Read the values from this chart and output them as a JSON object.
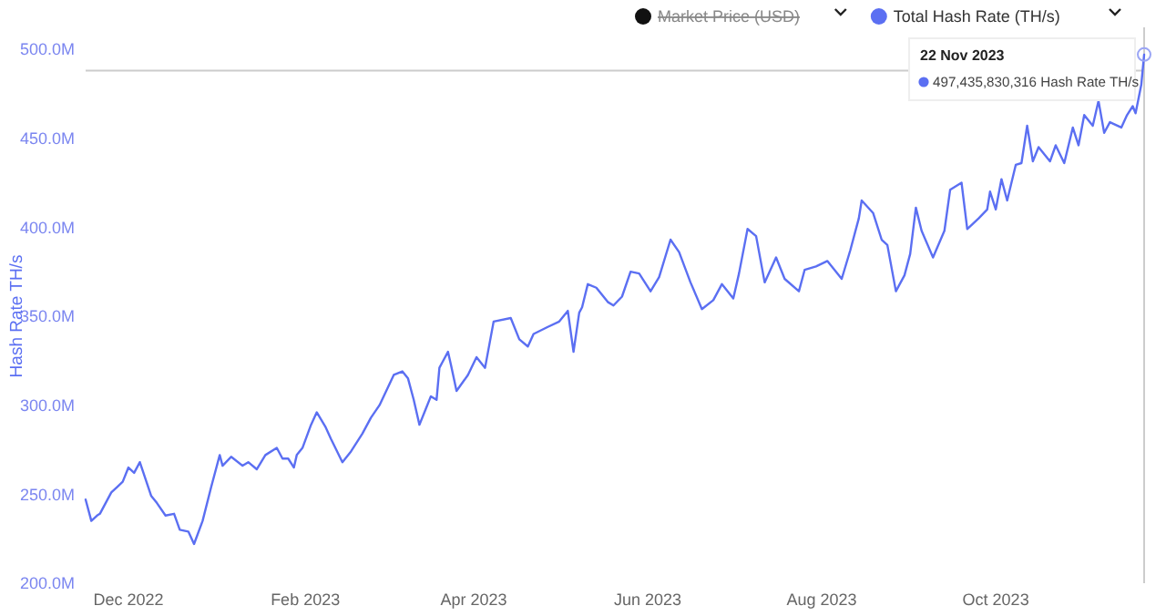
{
  "chart_data": {
    "type": "line",
    "ylabel": "Hash Rate TH/s",
    "legend": "top right",
    "x": [
      "2022-11-16",
      "2022-11-18",
      "2022-11-20",
      "2022-11-21",
      "2022-11-23",
      "2022-11-25",
      "2022-11-27",
      "2022-11-29",
      "2022-12-01",
      "2022-12-03",
      "2022-12-05",
      "2022-12-09",
      "2022-12-11",
      "2022-12-14",
      "2022-12-17",
      "2022-12-19",
      "2022-12-22",
      "2022-12-24",
      "2022-12-27",
      "2022-12-30",
      "2023-01-02",
      "2023-01-03",
      "2023-01-06",
      "2023-01-10",
      "2023-01-12",
      "2023-01-15",
      "2023-01-18",
      "2023-01-22",
      "2023-01-24",
      "2023-01-26",
      "2023-01-28",
      "2023-01-29",
      "2023-01-31",
      "2023-02-03",
      "2023-02-05",
      "2023-02-08",
      "2023-02-10",
      "2023-02-14",
      "2023-02-17",
      "2023-02-21",
      "2023-02-24",
      "2023-02-27",
      "2023-03-04",
      "2023-03-07",
      "2023-03-09",
      "2023-03-11",
      "2023-03-13",
      "2023-03-15",
      "2023-03-17",
      "2023-03-19",
      "2023-03-20",
      "2023-03-21",
      "2023-03-23",
      "2023-03-24",
      "2023-03-26",
      "2023-03-30",
      "2023-04-02",
      "2023-04-05",
      "2023-04-08",
      "2023-04-14",
      "2023-04-17",
      "2023-04-20",
      "2023-04-22",
      "2023-04-27",
      "2023-05-01",
      "2023-05-04",
      "2023-05-06",
      "2023-05-08",
      "2023-05-09",
      "2023-05-11",
      "2023-05-14",
      "2023-05-18",
      "2023-05-20",
      "2023-05-23",
      "2023-05-26",
      "2023-05-29",
      "2023-06-02",
      "2023-06-05",
      "2023-06-09",
      "2023-06-12",
      "2023-06-16",
      "2023-06-20",
      "2023-06-24",
      "2023-06-27",
      "2023-07-01",
      "2023-07-03",
      "2023-07-06",
      "2023-07-09",
      "2023-07-12",
      "2023-07-16",
      "2023-07-19",
      "2023-07-24",
      "2023-07-26",
      "2023-07-30",
      "2023-08-03",
      "2023-08-08",
      "2023-08-11",
      "2023-08-14",
      "2023-08-15",
      "2023-08-19",
      "2023-08-22",
      "2023-08-24",
      "2023-08-27",
      "2023-08-30",
      "2023-09-01",
      "2023-09-03",
      "2023-09-05",
      "2023-09-09",
      "2023-09-13",
      "2023-09-15",
      "2023-09-19",
      "2023-09-21",
      "2023-09-25",
      "2023-09-28",
      "2023-09-29",
      "2023-10-01",
      "2023-10-03",
      "2023-10-05",
      "2023-10-08",
      "2023-10-10",
      "2023-10-12",
      "2023-10-14",
      "2023-10-16",
      "2023-10-20",
      "2023-10-22",
      "2023-10-25",
      "2023-10-28",
      "2023-10-30",
      "2023-11-01",
      "2023-11-04",
      "2023-11-06",
      "2023-11-08",
      "2023-11-10",
      "2023-11-14",
      "2023-11-16",
      "2023-11-18",
      "2023-11-19",
      "2023-11-21",
      "2023-11-22"
    ],
    "series": [
      {
        "name": "Total Hash Rate (TH/s)",
        "color": "#5b6ff2",
        "values": [
          247,
          235,
          238,
          239,
          245,
          251,
          254,
          257,
          265,
          262,
          268,
          249,
          245,
          238,
          239,
          230,
          229,
          222,
          235,
          254,
          272,
          266,
          271,
          266,
          268,
          264,
          272,
          276,
          270,
          270,
          265,
          272,
          276,
          289,
          296,
          288,
          281,
          268,
          274,
          284,
          293,
          300,
          317,
          319,
          315,
          303,
          289,
          297,
          305,
          303,
          321,
          324,
          330,
          323,
          308,
          317,
          327,
          321,
          347,
          349,
          337,
          333,
          340,
          344,
          347,
          353,
          330,
          352,
          355,
          368,
          366,
          358,
          356,
          361,
          375,
          374,
          364,
          372,
          393,
          386,
          369,
          354,
          359,
          368,
          360,
          374,
          399,
          395,
          369,
          383,
          371,
          364,
          376,
          378,
          381,
          371,
          387,
          405,
          415,
          408,
          393,
          390,
          364,
          373,
          385,
          411,
          398,
          383,
          398,
          421,
          425,
          399,
          405,
          410,
          420,
          410,
          427,
          415,
          435,
          436,
          457,
          437,
          445,
          437,
          446,
          436,
          456,
          446,
          463,
          457,
          471,
          453,
          459,
          456,
          463,
          468,
          464,
          480,
          497
        ]
      },
      {
        "name": "Market Price (USD)",
        "color": "#111111",
        "values": [
          null,
          null,
          null,
          null,
          null,
          null,
          null,
          null,
          null,
          null,
          null,
          null,
          null,
          null,
          null,
          null,
          null,
          null,
          null,
          null,
          null,
          null,
          null,
          null,
          null,
          null,
          null,
          null,
          null,
          null,
          null,
          null,
          null,
          null,
          null,
          null,
          null,
          null,
          null,
          null,
          null,
          null,
          null,
          null,
          null,
          null,
          null,
          null,
          null,
          null,
          null,
          null,
          null,
          null,
          null,
          null,
          null,
          null,
          null,
          null,
          null,
          null,
          null,
          null,
          null,
          null,
          null,
          null,
          null,
          null,
          null,
          null,
          null,
          null,
          null,
          null,
          null,
          null,
          null,
          null,
          null,
          null,
          null,
          null,
          null,
          null,
          null,
          null,
          null,
          null,
          null,
          null,
          null,
          null,
          null,
          null,
          null,
          null,
          null,
          null,
          null,
          null,
          null,
          null,
          null,
          null,
          null,
          null,
          null,
          null,
          null,
          null,
          null,
          null,
          null,
          null,
          null,
          null,
          null,
          null,
          null,
          null,
          null,
          null,
          null,
          null,
          null,
          null,
          null,
          null,
          null,
          null,
          null,
          null,
          null,
          null,
          null,
          null,
          null
        ]
      }
    ],
    "xlim": [
      "2022-11-16",
      "2023-11-22"
    ],
    "xticks": [
      {
        "value": "2022-12-01",
        "label": "Dec 2022"
      },
      {
        "value": "2023-02-01",
        "label": "Feb 2023"
      },
      {
        "value": "2023-04-01",
        "label": "Apr 2023"
      },
      {
        "value": "2023-06-01",
        "label": "Jun 2023"
      },
      {
        "value": "2023-08-01",
        "label": "Aug 2023"
      },
      {
        "value": "2023-10-01",
        "label": "Oct 2023"
      }
    ],
    "ylim": [
      200,
      500
    ],
    "yticks": [
      {
        "value": 200,
        "label": "200.0M"
      },
      {
        "value": 250,
        "label": "250.0M"
      },
      {
        "value": 300,
        "label": "300.0M"
      },
      {
        "value": 350,
        "label": "350.0M"
      },
      {
        "value": 400,
        "label": "400.0M"
      },
      {
        "value": 450,
        "label": "450.0M"
      },
      {
        "value": 500,
        "label": "500.0M"
      }
    ],
    "grid": false,
    "marker": "none",
    "line_style": "solid",
    "ref_lines": [
      {
        "axis": "y",
        "value": 488,
        "color": "#cccccc"
      },
      {
        "axis": "x",
        "value": "2023-11-22",
        "color": "#cccccc"
      }
    ],
    "annotations": [
      "22 Nov 2023",
      "497,435,830,316 Hash Rate TH/s"
    ]
  }
}
